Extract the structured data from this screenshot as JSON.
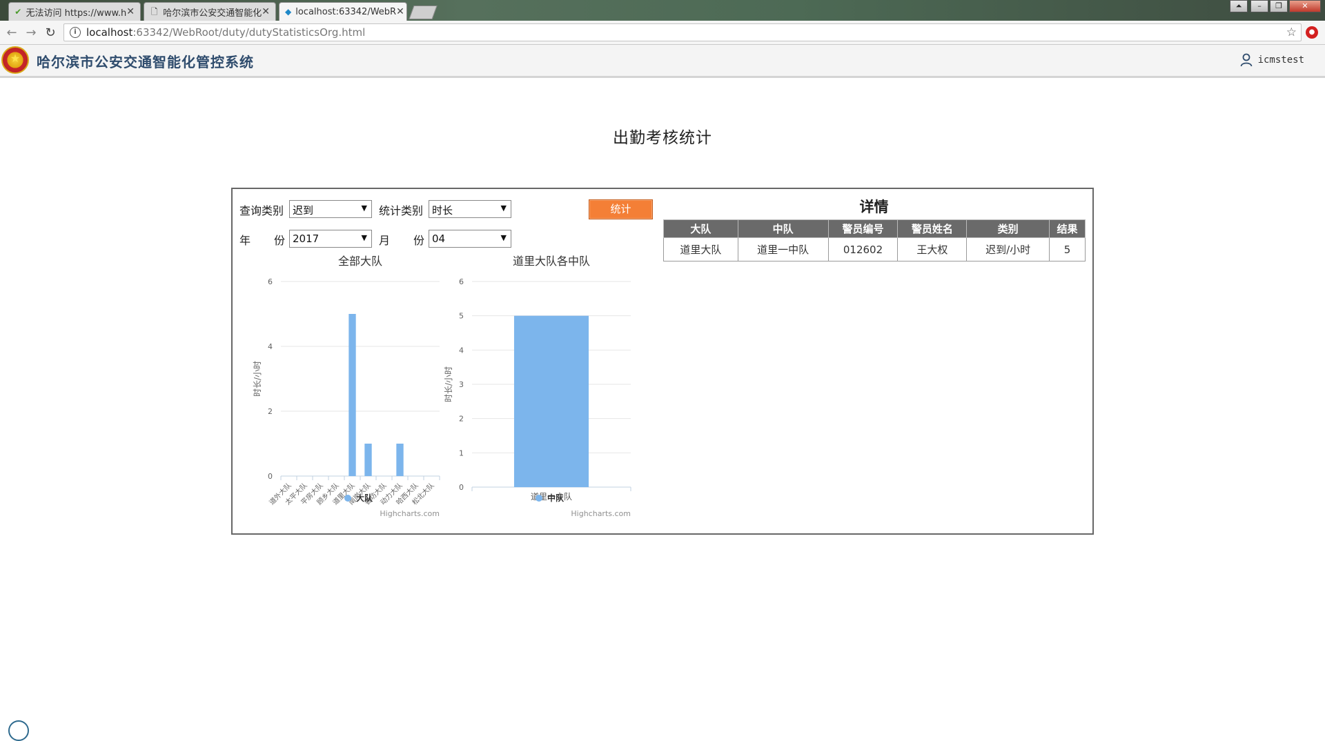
{
  "browser": {
    "tabs": [
      {
        "label": "无法访问 https://www.h",
        "active": false
      },
      {
        "label": "哈尔滨市公安交通智能化",
        "active": false
      },
      {
        "label": "localhost:63342/WebR",
        "active": true
      }
    ],
    "url_host": "localhost",
    "url_path": ":63342/WebRoot/duty/dutyStatisticsOrg.html"
  },
  "app": {
    "title": "哈尔滨市公安交通智能化管控系统",
    "user": "icmstest"
  },
  "page": {
    "title": "出勤考核统计"
  },
  "filters": {
    "query_type_label": "查询类别",
    "query_type_value": "迟到",
    "stat_type_label": "统计类别",
    "stat_type_value": "时长",
    "year_label_1": "年",
    "year_label_2": "份",
    "year_value": "2017",
    "month_label_1": "月",
    "month_label_2": "份",
    "month_value": "04",
    "submit_label": "统计"
  },
  "chart_data": [
    {
      "type": "bar",
      "title": "全部大队",
      "ylabel": "时长/小时",
      "ylim": [
        0,
        6
      ],
      "yticks": [
        0,
        2,
        4,
        6
      ],
      "categories": [
        "道外大队",
        "太平大队",
        "平房大队",
        "顾乡大队",
        "道里大队",
        "南岗大队",
        "香坊大队",
        "动力大队",
        "哈西大队",
        "松北大队"
      ],
      "series": [
        {
          "name": "大队",
          "values": [
            0,
            0,
            0,
            0,
            5,
            1,
            0,
            1,
            0,
            0
          ]
        }
      ],
      "legend": "bottom-center",
      "credits": "Highcharts.com",
      "color": "#7cb5ec"
    },
    {
      "type": "bar",
      "title": "道里大队各中队",
      "ylabel": "时长/小时",
      "ylim": [
        0,
        6
      ],
      "yticks": [
        0,
        1,
        2,
        3,
        4,
        5,
        6
      ],
      "categories": [
        "道里一中队"
      ],
      "series": [
        {
          "name": "中队",
          "values": [
            5
          ]
        }
      ],
      "legend": "bottom-center",
      "credits": "Highcharts.com",
      "color": "#7cb5ec"
    }
  ],
  "details": {
    "title": "详情",
    "headers": [
      "大队",
      "中队",
      "警员编号",
      "警员姓名",
      "类别",
      "结果"
    ],
    "rows": [
      [
        "道里大队",
        "道里一中队",
        "012602",
        "王大权",
        "迟到/小时",
        "5"
      ]
    ]
  }
}
